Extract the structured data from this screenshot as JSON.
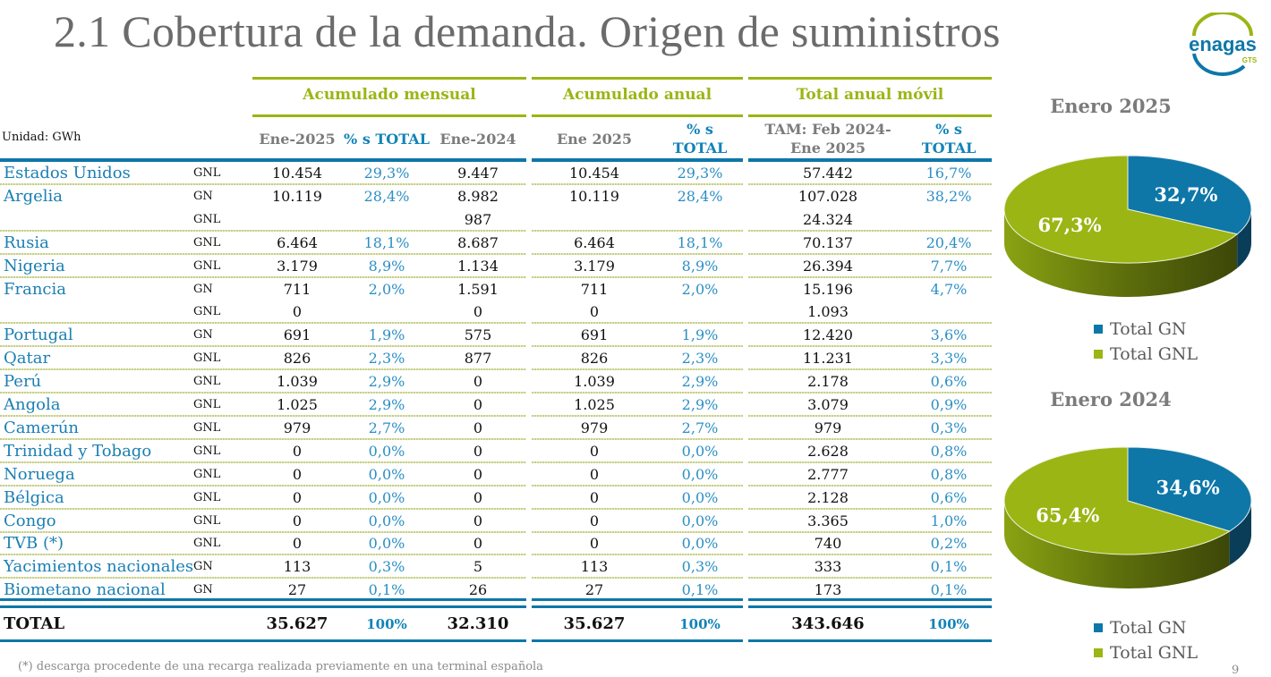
{
  "title": "2.1 Cobertura de la demanda. Origen de suministros",
  "logo": {
    "text": "enagas",
    "sub": "GTS"
  },
  "colors": {
    "gn": "#0e77a8",
    "gnl": "#9bb514",
    "country": "#1a7fb3",
    "pct": "#2b8fc4",
    "header_gray": "#7b7b7b"
  },
  "table": {
    "unit_label": "Unidad: GWh",
    "groups": [
      {
        "label": "Acumulado mensual"
      },
      {
        "label": "Acumulado anual"
      },
      {
        "label": "Total anual móvil"
      }
    ],
    "columns": [
      {
        "label": "Ene-2025"
      },
      {
        "label": "% s TOTAL"
      },
      {
        "label": "Ene-2024"
      },
      {
        "label": "Ene 2025"
      },
      {
        "label_1": "% s",
        "label_2": "TOTAL"
      },
      {
        "label_1": "TAM: Feb 2024-",
        "label_2": "Ene 2025"
      },
      {
        "label_1": "% s",
        "label_2": "TOTAL"
      }
    ],
    "rows": [
      {
        "country": "Estados Unidos",
        "type": "GNL",
        "v": [
          "10.454",
          "29,3%",
          "9.447",
          "10.454",
          "29,3%",
          "57.442",
          "16,7%"
        ],
        "sep": true
      },
      {
        "country": "Argelia",
        "type": "GN",
        "v": [
          "10.119",
          "28,4%",
          "8.982",
          "10.119",
          "28,4%",
          "107.028",
          "38,2%"
        ],
        "sep": false
      },
      {
        "country": "",
        "type": "GNL",
        "v": [
          "",
          "",
          "987",
          "",
          "",
          "24.324",
          ""
        ],
        "sep": true
      },
      {
        "country": "Rusia",
        "type": "GNL",
        "v": [
          "6.464",
          "18,1%",
          "8.687",
          "6.464",
          "18,1%",
          "70.137",
          "20,4%"
        ],
        "sep": true
      },
      {
        "country": "Nigeria",
        "type": "GNL",
        "v": [
          "3.179",
          "8,9%",
          "1.134",
          "3.179",
          "8,9%",
          "26.394",
          "7,7%"
        ],
        "sep": true
      },
      {
        "country": "Francia",
        "type": "GN",
        "v": [
          "711",
          "2,0%",
          "1.591",
          "711",
          "2,0%",
          "15.196",
          "4,7%"
        ],
        "sep": false
      },
      {
        "country": "",
        "type": "GNL",
        "v": [
          "0",
          "",
          "0",
          "0",
          "",
          "1.093",
          ""
        ],
        "sep": true
      },
      {
        "country": "Portugal",
        "type": "GN",
        "v": [
          "691",
          "1,9%",
          "575",
          "691",
          "1,9%",
          "12.420",
          "3,6%"
        ],
        "sep": true
      },
      {
        "country": "Qatar",
        "type": "GNL",
        "v": [
          "826",
          "2,3%",
          "877",
          "826",
          "2,3%",
          "11.231",
          "3,3%"
        ],
        "sep": true
      },
      {
        "country": "Perú",
        "type": "GNL",
        "v": [
          "1.039",
          "2,9%",
          "0",
          "1.039",
          "2,9%",
          "2.178",
          "0,6%"
        ],
        "sep": true
      },
      {
        "country": "Angola",
        "type": "GNL",
        "v": [
          "1.025",
          "2,9%",
          "0",
          "1.025",
          "2,9%",
          "3.079",
          "0,9%"
        ],
        "sep": true
      },
      {
        "country": "Camerún",
        "type": "GNL",
        "v": [
          "979",
          "2,7%",
          "0",
          "979",
          "2,7%",
          "979",
          "0,3%"
        ],
        "sep": true
      },
      {
        "country": "Trinidad y Tobago",
        "type": "GNL",
        "v": [
          "0",
          "0,0%",
          "0",
          "0",
          "0,0%",
          "2.628",
          "0,8%"
        ],
        "sep": true
      },
      {
        "country": "Noruega",
        "type": "GNL",
        "v": [
          "0",
          "0,0%",
          "0",
          "0",
          "0,0%",
          "2.777",
          "0,8%"
        ],
        "sep": true
      },
      {
        "country": "Bélgica",
        "type": "GNL",
        "v": [
          "0",
          "0,0%",
          "0",
          "0",
          "0,0%",
          "2.128",
          "0,6%"
        ],
        "sep": true
      },
      {
        "country": "Congo",
        "type": "GNL",
        "v": [
          "0",
          "0,0%",
          "0",
          "0",
          "0,0%",
          "3.365",
          "1,0%"
        ],
        "sep": true
      },
      {
        "country": "TVB (*)",
        "type": "GNL",
        "v": [
          "0",
          "0,0%",
          "0",
          "0",
          "0,0%",
          "740",
          "0,2%"
        ],
        "sep": true
      },
      {
        "country": "Yacimientos nacionales",
        "type": "GN",
        "v": [
          "113",
          "0,3%",
          "5",
          "113",
          "0,3%",
          "333",
          "0,1%"
        ],
        "sep": true
      },
      {
        "country": "Biometano nacional",
        "type": "GN",
        "v": [
          "27",
          "0,1%",
          "26",
          "27",
          "0,1%",
          "173",
          "0,1%"
        ],
        "sep": false
      }
    ],
    "total": {
      "label": "TOTAL",
      "v": [
        "35.627",
        "100%",
        "32.310",
        "35.627",
        "100%",
        "343.646",
        "100%"
      ]
    }
  },
  "footnote": "(*) descarga procedente de una recarga realizada previamente en una terminal española",
  "page_number": "9",
  "chart_data": [
    {
      "type": "pie",
      "title": "Enero 2025",
      "categories": [
        "Total GN",
        "Total GNL"
      ],
      "values": [
        32.7,
        67.3
      ],
      "labels": [
        "32,7%",
        "67,3%"
      ],
      "legend": "bottom"
    },
    {
      "type": "pie",
      "title": "Enero 2024",
      "categories": [
        "Total GN",
        "Total GNL"
      ],
      "values": [
        34.6,
        65.4
      ],
      "labels": [
        "34,6%",
        "65,4%"
      ],
      "legend": "bottom"
    }
  ]
}
